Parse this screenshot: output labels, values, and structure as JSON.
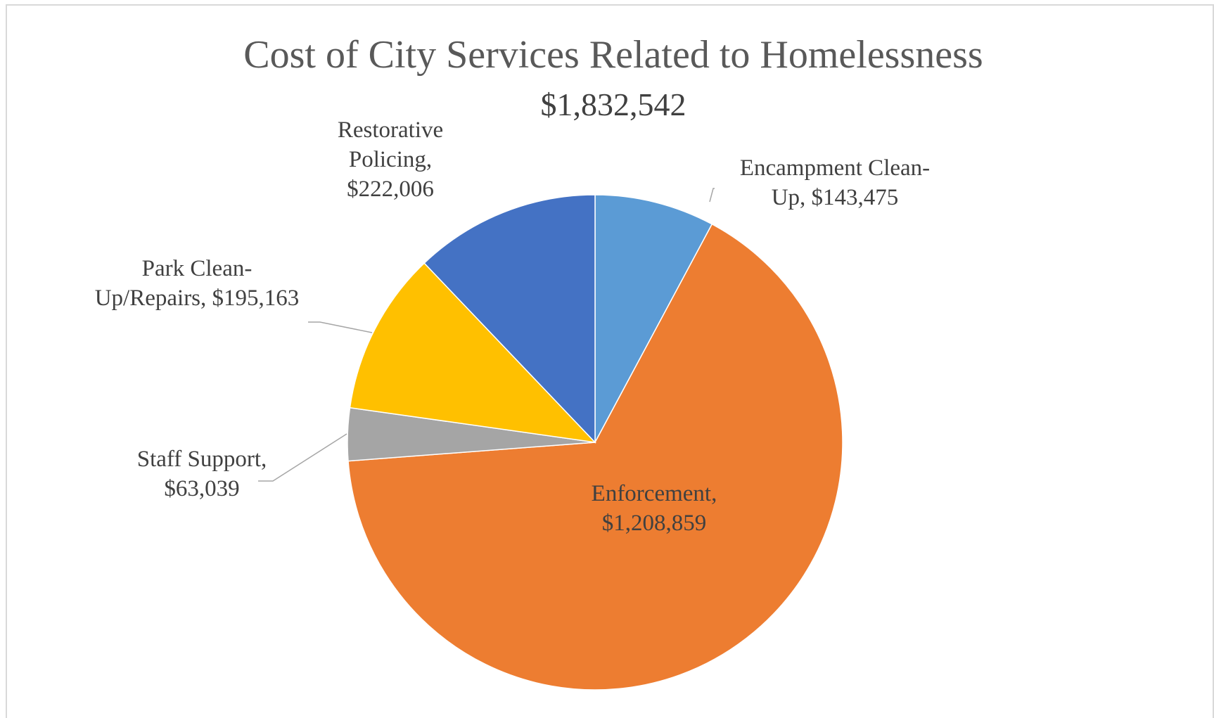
{
  "chart_data": {
    "type": "pie",
    "title": "Cost of City Services Related to Homelessness",
    "subtitle": "$1,832,542",
    "categories": [
      "Encampment Clean-Up",
      "Enforcement",
      "Staff Support",
      "Park Clean-Up/Repairs",
      "Restorative Policing"
    ],
    "values": [
      143475,
      1208859,
      63039,
      195163,
      222006
    ],
    "colors": [
      "#5b9bd5",
      "#ed7d31",
      "#a5a5a5",
      "#ffc000",
      "#4472c4"
    ],
    "data_labels": [
      [
        "Encampment Clean-",
        "Up, $143,475"
      ],
      [
        "Enforcement,",
        "$1,208,859"
      ],
      [
        "Staff Support,",
        "$63,039"
      ],
      [
        "Park Clean-",
        "Up/Repairs, $195,163"
      ],
      [
        "Restorative",
        "Policing,",
        "$222,006"
      ]
    ],
    "legend": "none"
  }
}
